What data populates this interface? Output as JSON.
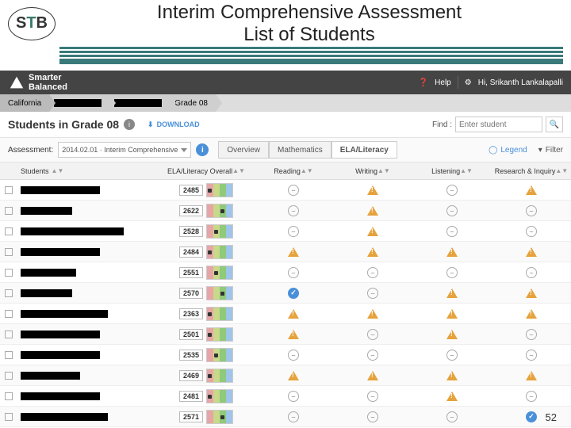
{
  "slide": {
    "title_l1": "Interim Comprehensive Assessment",
    "title_l2": "List of Students",
    "page_number": "52",
    "logo_text_s": "S",
    "logo_text_t": "T",
    "logo_text_b": "B"
  },
  "header": {
    "brand_l1": "Smarter",
    "brand_l2": "Balanced",
    "help": "Help",
    "greeting": "Hi, Srikanth Lankalapalli"
  },
  "breadcrumb": {
    "root": "California",
    "leaf": "Grade 08"
  },
  "subheader": {
    "title": "Students in Grade 08",
    "download": "DOWNLOAD",
    "find_label": "Find :",
    "find_placeholder": "Enter student"
  },
  "toolbar": {
    "assessment_label": "Assessment:",
    "assessment_value": "2014.02.01 · Interim Comprehensive",
    "tab_overview": "Overview",
    "tab_math": "Mathematics",
    "tab_ela": "ELA/Literacy",
    "legend": "Legend",
    "filter": "Filter"
  },
  "columns": {
    "students": "Students",
    "overall": "ELA/Literacy Overall",
    "reading": "Reading",
    "writing": "Writing",
    "listening": "Listening",
    "research": "Research & Inquiry"
  },
  "colors": {
    "band_red": "#e8a5a5",
    "band_yellow": "#c8d98a",
    "band_green": "#8fc97a",
    "band_blue": "#9fc5e8",
    "brand_bg": "#444444",
    "accent": "#4a90d9",
    "warn": "#e6a23c"
  },
  "rows": [
    {
      "name_w": 100,
      "score": "2485",
      "band": 0,
      "reading": "dash",
      "writing": "warn",
      "listening": "dash",
      "research": "warn"
    },
    {
      "name_w": 65,
      "score": "2622",
      "band": 2,
      "reading": "dash",
      "writing": "warn",
      "listening": "dash",
      "research": "dash"
    },
    {
      "name_w": 130,
      "score": "2528",
      "band": 1,
      "reading": "dash",
      "writing": "warn",
      "listening": "dash",
      "research": "dash"
    },
    {
      "name_w": 100,
      "score": "2484",
      "band": 0,
      "reading": "warn",
      "writing": "warn",
      "listening": "warn",
      "research": "warn"
    },
    {
      "name_w": 70,
      "score": "2551",
      "band": 1,
      "reading": "dash",
      "writing": "dash",
      "listening": "dash",
      "research": "dash"
    },
    {
      "name_w": 65,
      "score": "2570",
      "band": 2,
      "reading": "check",
      "writing": "dash",
      "listening": "warn",
      "research": "warn"
    },
    {
      "name_w": 110,
      "score": "2363",
      "band": 0,
      "reading": "warn",
      "writing": "warn",
      "listening": "warn",
      "research": "warn"
    },
    {
      "name_w": 100,
      "score": "2501",
      "band": 0,
      "reading": "warn",
      "writing": "dash",
      "listening": "warn",
      "research": "dash"
    },
    {
      "name_w": 100,
      "score": "2535",
      "band": 1,
      "reading": "dash",
      "writing": "dash",
      "listening": "dash",
      "research": "dash"
    },
    {
      "name_w": 75,
      "score": "2469",
      "band": 0,
      "reading": "warn",
      "writing": "warn",
      "listening": "warn",
      "research": "warn"
    },
    {
      "name_w": 100,
      "score": "2481",
      "band": 0,
      "reading": "dash",
      "writing": "dash",
      "listening": "warn",
      "research": "dash"
    },
    {
      "name_w": 110,
      "score": "2571",
      "band": 2,
      "reading": "dash",
      "writing": "dash",
      "listening": "dash",
      "research": "check"
    }
  ]
}
